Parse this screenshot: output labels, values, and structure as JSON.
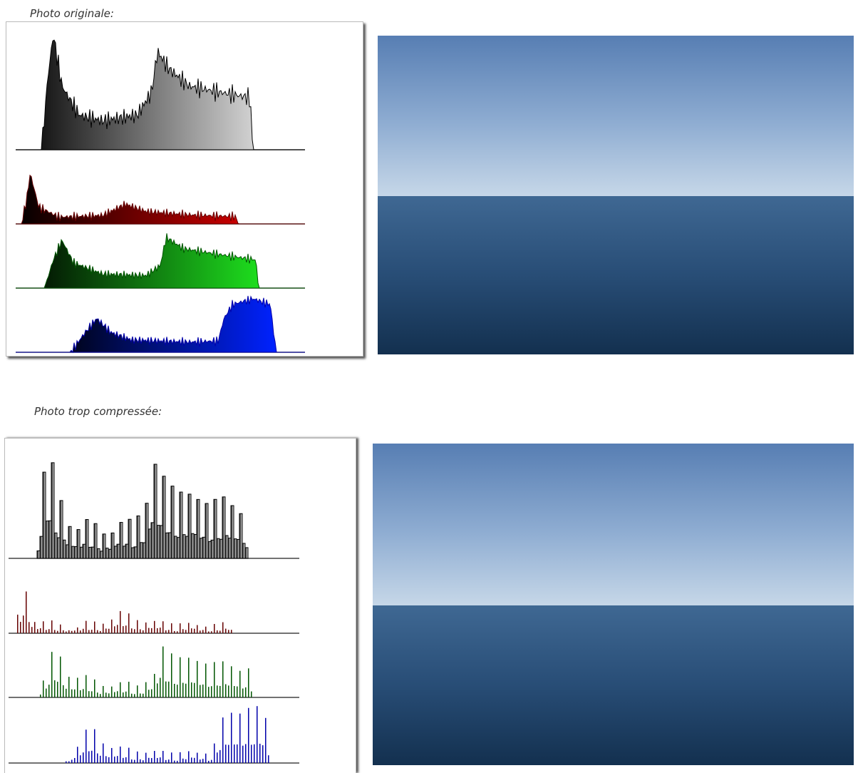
{
  "captions": {
    "original": "Photo originale:",
    "compressed": "Photo trop compressée:"
  }
}
